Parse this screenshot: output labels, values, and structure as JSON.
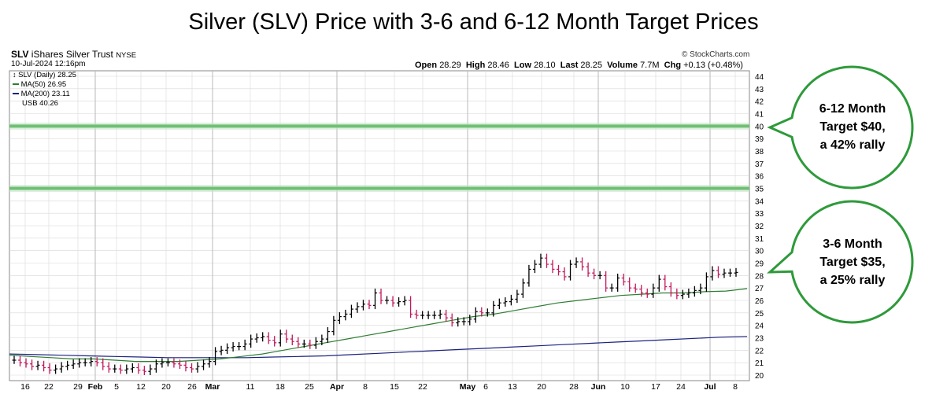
{
  "title": "Silver (SLV) Price with 3-6 and 6-12 Month Target Prices",
  "header": {
    "symbol": "SLV",
    "name": "iShares Silver Trust",
    "exchange": "NYSE",
    "datetime": "10-Jul-2024 12:16pm",
    "credit": "© StockCharts.com",
    "open_label": "Open",
    "open": "28.29",
    "high_label": "High",
    "high": "28.46",
    "low_label": "Low",
    "low": "28.10",
    "last_label": "Last",
    "last": "28.25",
    "volume_label": "Volume",
    "volume": "7.7M",
    "chg_label": "Chg",
    "chg": "+0.13 (+0.48%)"
  },
  "legend": [
    {
      "text": "SLV (Daily) 28.25",
      "color": "#000000"
    },
    {
      "text": "MA(50) 26.95",
      "color": "#2e7d32"
    },
    {
      "text": "MA(200) 23.11",
      "color": "#1a237e"
    },
    {
      "text": "USB 40.26",
      "color": "#000000"
    }
  ],
  "callouts": [
    {
      "lines": [
        "6-12 Month",
        "Target $40,",
        "a 42% rally"
      ]
    },
    {
      "lines": [
        "3-6 Month",
        "Target $35,",
        "a 25% rally"
      ]
    }
  ],
  "colors": {
    "up": "#000000",
    "down": "#c2185b",
    "ma50": "#2e7d32",
    "ma200": "#1a237e",
    "target": "#6fbf73",
    "grid": "#d8d8d8",
    "callout_border": "#2e9a3a"
  },
  "chart_data": {
    "type": "line",
    "ylim": [
      20,
      44
    ],
    "y_ticks": [
      20,
      21,
      22,
      23,
      24,
      25,
      26,
      27,
      28,
      29,
      30,
      31,
      32,
      33,
      34,
      35,
      36,
      37,
      38,
      39,
      40,
      41,
      42,
      43,
      44
    ],
    "x_ticks": [
      "16",
      "22",
      "29",
      "Feb",
      "5",
      "12",
      "20",
      "26",
      "Mar",
      "11",
      "18",
      "25",
      "Apr",
      "8",
      "15",
      "22",
      "May",
      "6",
      "13",
      "20",
      "28",
      "Jun",
      "10",
      "17",
      "24",
      "Jul",
      "8"
    ],
    "target_lines": [
      40,
      35
    ],
    "series": [
      {
        "name": "SLV (Daily)",
        "values": [
          21.2,
          21.0,
          20.9,
          20.7,
          20.8,
          20.6,
          20.4,
          20.5,
          20.7,
          20.8,
          20.9,
          21.0,
          21.0,
          21.1,
          21.0,
          20.7,
          20.5,
          20.5,
          20.4,
          20.5,
          20.6,
          20.4,
          20.3,
          20.5,
          20.9,
          21.0,
          21.0,
          20.9,
          20.8,
          20.6,
          20.5,
          20.7,
          20.9,
          21.1,
          21.9,
          22.0,
          22.2,
          22.3,
          22.3,
          22.5,
          22.9,
          23.0,
          23.1,
          22.8,
          22.6,
          23.3,
          22.9,
          22.7,
          22.5,
          22.5,
          22.4,
          22.7,
          22.9,
          23.5,
          24.4,
          24.7,
          24.9,
          25.3,
          25.5,
          25.7,
          25.6,
          26.6,
          26.0,
          26.0,
          25.8,
          25.9,
          26.0,
          24.9,
          24.8,
          24.8,
          24.8,
          24.8,
          24.9,
          24.6,
          24.2,
          24.3,
          24.3,
          24.5,
          25.1,
          25.0,
          25.0,
          25.6,
          25.8,
          25.9,
          26.1,
          26.5,
          27.4,
          28.5,
          28.9,
          29.4,
          28.9,
          28.5,
          28.3,
          27.9,
          28.9,
          29.1,
          28.7,
          28.2,
          28.0,
          28.0,
          27.0,
          27.0,
          27.8,
          27.5,
          27.0,
          26.9,
          26.6,
          26.5,
          27.0,
          27.7,
          27.1,
          26.6,
          26.4,
          26.5,
          26.6,
          26.8,
          27.0,
          27.9,
          28.4,
          28.1,
          28.2,
          28.2,
          28.25
        ]
      },
      {
        "name": "MA(50)",
        "values": [
          21.6,
          21.5,
          21.4,
          21.3,
          21.3,
          21.2,
          21.1,
          21.1,
          21.1,
          21.2,
          21.3,
          21.5,
          21.7,
          22.0,
          22.3,
          22.6,
          22.9,
          23.2,
          23.5,
          23.8,
          24.1,
          24.4,
          24.7,
          24.9,
          25.2,
          25.5,
          25.8,
          26.0,
          26.2,
          26.4,
          26.5,
          26.6,
          26.6,
          26.7,
          26.75,
          26.95
        ]
      },
      {
        "name": "MA(200)",
        "values": [
          21.7,
          21.65,
          21.6,
          21.55,
          21.5,
          21.45,
          21.4,
          21.4,
          21.4,
          21.4,
          21.45,
          21.5,
          21.55,
          21.65,
          21.75,
          21.85,
          21.95,
          22.05,
          22.15,
          22.25,
          22.35,
          22.45,
          22.55,
          22.65,
          22.75,
          22.85,
          22.95,
          23.05,
          23.11
        ]
      }
    ]
  }
}
